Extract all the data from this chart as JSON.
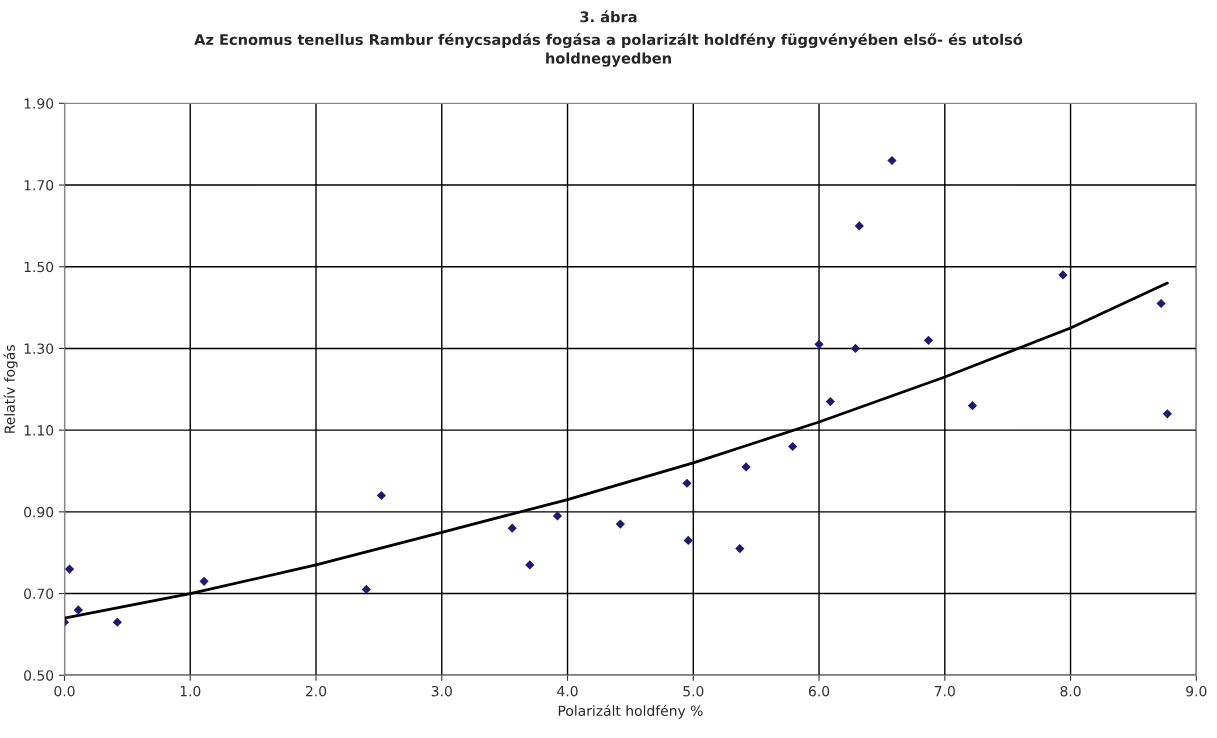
{
  "chart_data": {
    "type": "scatter",
    "title": "3. ábra",
    "subtitle": "Az Ecnomus tenellus Rambur fénycsapdás fogása a polarizált holdfény függvényében első- és utolsó\nholdnegyedben",
    "xlabel": "Polarizált holdfény %",
    "ylabel": "Relatív fogás",
    "series": [
      {
        "color": "#1c1c6e",
        "marker": "diamond",
        "x": [
          0.0,
          0.04,
          0.11,
          0.42,
          1.11,
          2.4,
          2.52,
          3.56,
          3.7,
          3.92,
          4.42,
          4.95,
          4.96,
          5.37,
          5.42,
          5.79,
          6.0,
          6.09,
          6.29,
          6.32,
          6.58,
          6.87,
          7.22,
          7.94,
          8.72,
          8.77
        ],
        "values": [
          0.63,
          0.76,
          0.66,
          0.63,
          0.73,
          0.71,
          0.94,
          0.86,
          0.77,
          0.89,
          0.87,
          0.97,
          0.83,
          0.81,
          1.01,
          1.06,
          1.31,
          1.17,
          1.3,
          1.6,
          1.76,
          1.32,
          1.16,
          1.48,
          1.41,
          1.14
        ]
      },
      {
        "type": "line",
        "color": "#000000",
        "marker": "none",
        "line_style": "solid",
        "x": [
          0,
          1,
          2,
          3,
          4,
          5,
          6,
          7,
          8,
          8.77
        ],
        "values": [
          0.64,
          0.7,
          0.77,
          0.85,
          0.93,
          1.02,
          1.12,
          1.23,
          1.35,
          1.46
        ]
      }
    ],
    "xlim": [
      0,
      9
    ],
    "xticks": [
      {
        "value": 0,
        "label": "0.0"
      },
      {
        "value": 1,
        "label": "1.0"
      },
      {
        "value": 2,
        "label": "2.0"
      },
      {
        "value": 3,
        "label": "3.0"
      },
      {
        "value": 4,
        "label": "4.0"
      },
      {
        "value": 5,
        "label": "5.0"
      },
      {
        "value": 6,
        "label": "6.0"
      },
      {
        "value": 7,
        "label": "7.0"
      },
      {
        "value": 8,
        "label": "8.0"
      },
      {
        "value": 9,
        "label": "9.0"
      }
    ],
    "ylim": [
      0.5,
      1.9
    ],
    "yticks": [
      {
        "value": 0.5,
        "label": "0.50"
      },
      {
        "value": 0.7,
        "label": "0.70"
      },
      {
        "value": 0.9,
        "label": "0.90"
      },
      {
        "value": 1.1,
        "label": "1.10"
      },
      {
        "value": 1.3,
        "label": "1.30"
      },
      {
        "value": 1.5,
        "label": "1.50"
      },
      {
        "value": 1.7,
        "label": "1.70"
      },
      {
        "value": 1.9,
        "label": "1.90"
      }
    ],
    "grid": true,
    "legend": false
  }
}
